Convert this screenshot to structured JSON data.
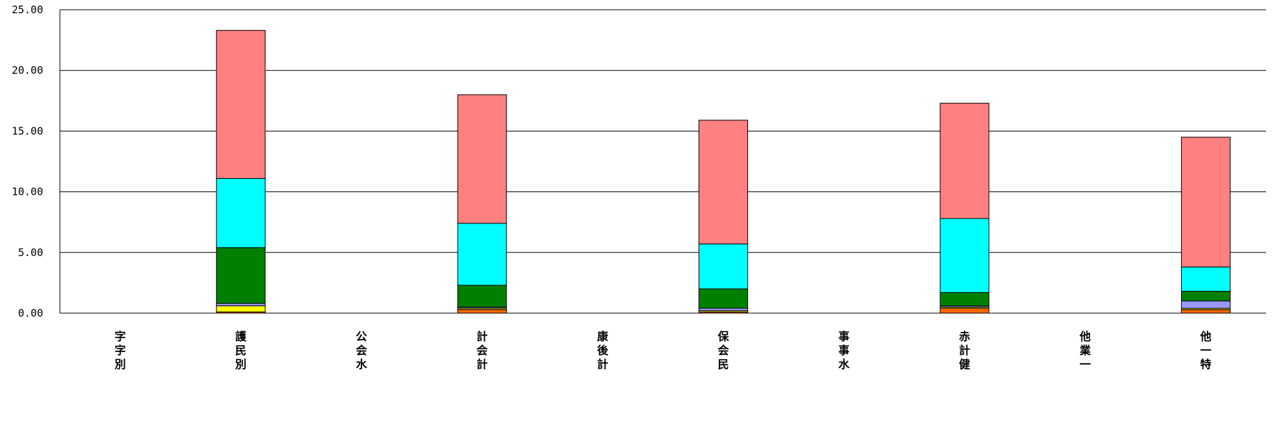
{
  "chart_data": {
    "type": "bar",
    "stacked": true,
    "categories": [
      [
        "字",
        "字",
        "別"
      ],
      [
        "護",
        "民",
        "別"
      ],
      [
        "公",
        "会",
        "水"
      ],
      [
        "計",
        "会",
        "計"
      ],
      [
        "康",
        "後",
        "計"
      ],
      [
        "保",
        "会",
        "民"
      ],
      [
        "事",
        "事",
        "水"
      ],
      [
        "赤",
        "計",
        "健"
      ],
      [
        "他",
        "業",
        "一"
      ],
      [
        "他",
        "一",
        "特"
      ]
    ],
    "ylim": [
      0,
      25
    ],
    "yticks": [
      "0.00",
      "5.00",
      "10.00",
      "15.00",
      "20.00",
      "25.00"
    ],
    "ytick_values": [
      0,
      5,
      10,
      15,
      20,
      25
    ],
    "grid": true,
    "legend": "none",
    "series": [
      {
        "color": "#FF6600",
        "values": [
          0,
          0.1,
          0,
          0.3,
          0,
          0.1,
          0,
          0.4,
          0,
          0.3
        ]
      },
      {
        "color": "#FFFF00",
        "values": [
          0,
          0.5,
          0,
          0.1,
          0,
          0.1,
          0,
          0.1,
          0,
          0.1
        ]
      },
      {
        "color": "#9999FF",
        "values": [
          0,
          0.2,
          0,
          0.1,
          0,
          0.2,
          0,
          0.1,
          0,
          0.6
        ]
      },
      {
        "color": "#008000",
        "values": [
          0,
          4.6,
          0,
          1.8,
          0,
          1.6,
          0,
          1.1,
          0,
          0.8
        ]
      },
      {
        "color": "#00FFFF",
        "values": [
          0,
          5.7,
          0,
          5.1,
          0,
          3.7,
          0,
          6.1,
          0,
          2.0
        ]
      },
      {
        "color": "#FF8080",
        "values": [
          0,
          12.2,
          0,
          10.6,
          0,
          10.2,
          0,
          9.5,
          0,
          10.7
        ]
      }
    ]
  }
}
